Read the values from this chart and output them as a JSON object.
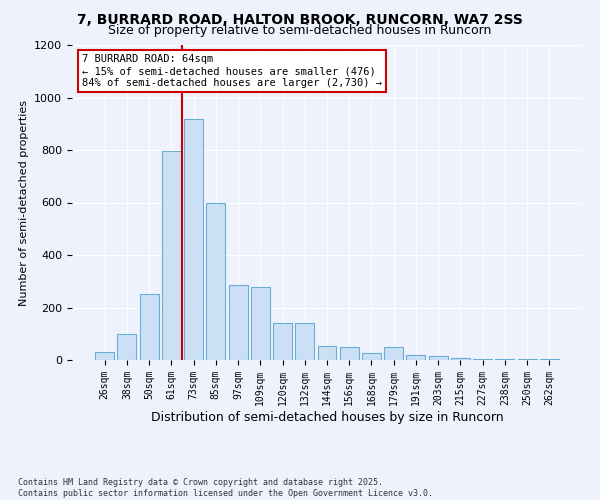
{
  "title_line1": "7, BURRARD ROAD, HALTON BROOK, RUNCORN, WA7 2SS",
  "title_line2": "Size of property relative to semi-detached houses in Runcorn",
  "xlabel": "Distribution of semi-detached houses by size in Runcorn",
  "ylabel": "Number of semi-detached properties",
  "categories": [
    "26sqm",
    "38sqm",
    "50sqm",
    "61sqm",
    "73sqm",
    "85sqm",
    "97sqm",
    "109sqm",
    "120sqm",
    "132sqm",
    "144sqm",
    "156sqm",
    "168sqm",
    "179sqm",
    "191sqm",
    "203sqm",
    "215sqm",
    "227sqm",
    "238sqm",
    "250sqm",
    "262sqm"
  ],
  "values": [
    30,
    100,
    250,
    795,
    920,
    600,
    285,
    280,
    140,
    140,
    55,
    50,
    28,
    50,
    20,
    14,
    8,
    4,
    3,
    2,
    4
  ],
  "bar_color": "#cce0f5",
  "bar_edge_color": "#6aaed6",
  "vline_color": "#cc0000",
  "vline_x_pos": 3.5,
  "annotation_box_color": "#cc0000",
  "property_label": "7 BURRARD ROAD: 64sqm",
  "pct_smaller": 15,
  "count_smaller": 476,
  "pct_larger": 84,
  "count_larger": 2730,
  "ylim": [
    0,
    1200
  ],
  "yticks": [
    0,
    200,
    400,
    600,
    800,
    1000,
    1200
  ],
  "footer_line1": "Contains HM Land Registry data © Crown copyright and database right 2025.",
  "footer_line2": "Contains public sector information licensed under the Open Government Licence v3.0.",
  "bg_color": "#eef2fc",
  "plot_bg_color": "#eef2fc"
}
